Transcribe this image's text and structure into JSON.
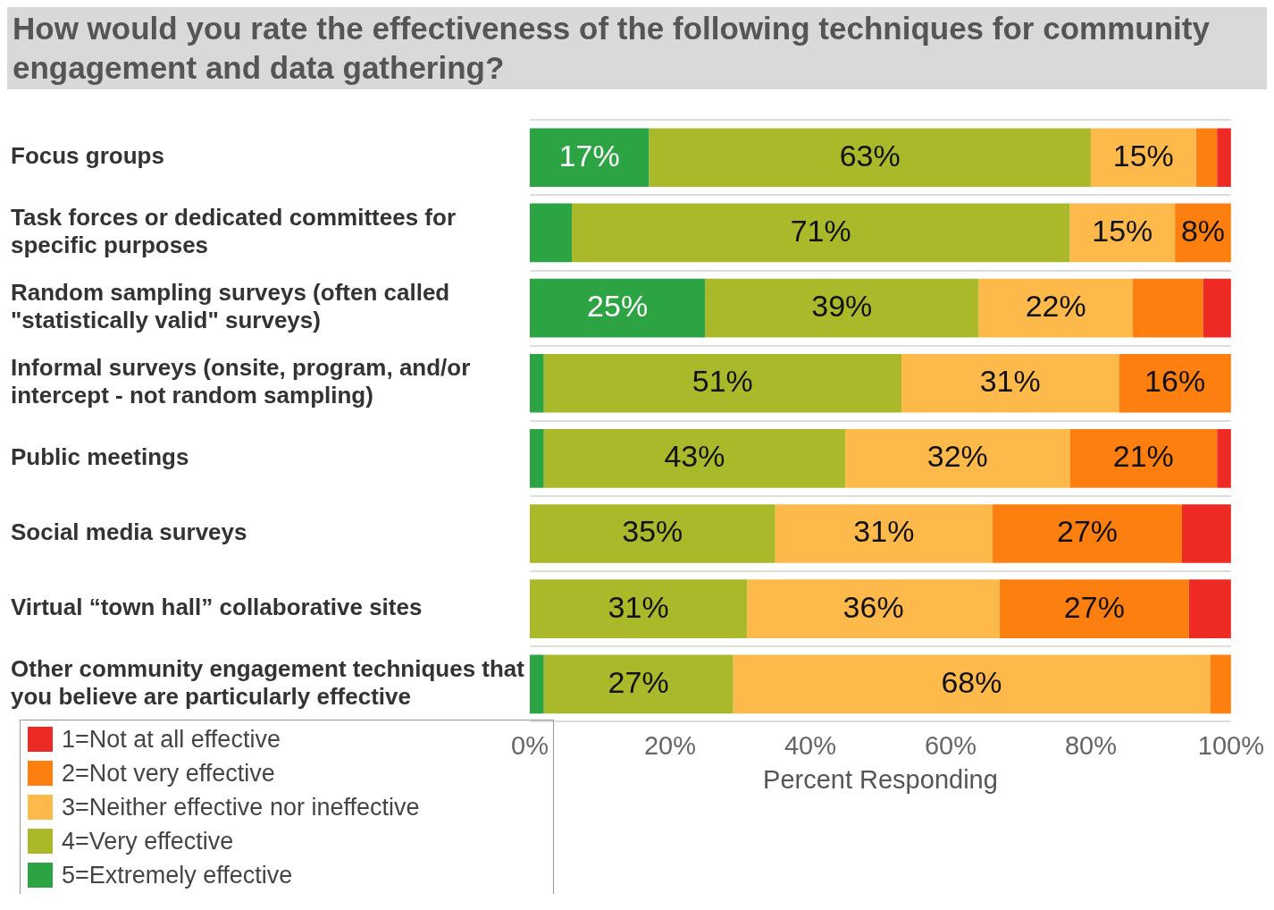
{
  "chart_data": {
    "type": "bar",
    "orientation": "horizontal",
    "stacked": true,
    "title": "How would you rate the effectiveness of the following techniques for community engagement and data gathering?",
    "xlabel": "Percent Responding",
    "categories": [
      "Focus groups",
      "Task forces or dedicated committees for specific purposes",
      "Random sampling surveys (often called \"statistically valid\" surveys)",
      "Informal surveys (onsite, program, and/or intercept - not random sampling)",
      "Public meetings",
      "Social media surveys",
      "Virtual “town hall” collaborative sites",
      "Other community engagement techniques that you believe are particularly effective"
    ],
    "series": [
      {
        "name": "5=Extremely effective",
        "color": "#2ca444",
        "values": [
          17,
          6,
          25,
          2,
          2,
          0,
          0,
          2
        ],
        "value_labels": [
          "17%",
          null,
          "25%",
          null,
          null,
          null,
          null,
          null
        ]
      },
      {
        "name": "4=Very effective",
        "color": "#a9b92a",
        "values": [
          63,
          71,
          39,
          51,
          43,
          35,
          31,
          27
        ],
        "value_labels": [
          "63%",
          "71%",
          "39%",
          "51%",
          "43%",
          "35%",
          "31%",
          "27%"
        ]
      },
      {
        "name": "3=Neither effective nor ineffective",
        "color": "#fdb94a",
        "values": [
          15,
          15,
          22,
          31,
          32,
          31,
          36,
          68
        ],
        "value_labels": [
          "15%",
          "15%",
          "22%",
          "31%",
          "32%",
          "31%",
          "36%",
          "68%"
        ]
      },
      {
        "name": "2=Not very effective",
        "color": "#fd7f0f",
        "values": [
          3,
          8,
          10,
          16,
          21,
          27,
          27,
          3
        ],
        "value_labels": [
          null,
          "8%",
          null,
          "16%",
          "21%",
          "27%",
          "27%",
          null
        ]
      },
      {
        "name": "1=Not at all effective",
        "color": "#ee2a24",
        "values": [
          2,
          0,
          4,
          0,
          2,
          7,
          6,
          0
        ],
        "value_labels": [
          null,
          null,
          null,
          null,
          null,
          null,
          null,
          null
        ]
      }
    ],
    "xlim": [
      0,
      100
    ],
    "xticks": [
      {
        "value": 0,
        "label": "0%"
      },
      {
        "value": 20,
        "label": "20%"
      },
      {
        "value": 40,
        "label": "40%"
      },
      {
        "value": 60,
        "label": "60%"
      },
      {
        "value": 80,
        "label": "80%"
      },
      {
        "value": 100,
        "label": "100%"
      }
    ],
    "grid": "y",
    "legend": "bottom left"
  }
}
